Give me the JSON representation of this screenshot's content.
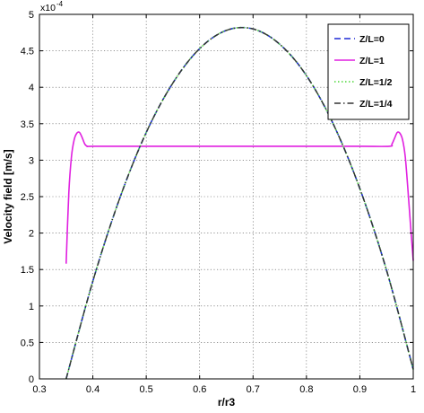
{
  "chart_data": {
    "type": "line",
    "title": "",
    "xlabel": "r/r3",
    "ylabel": "Velocity field [m/s]",
    "y_exponent_base": "x10",
    "y_exponent_power": "-4",
    "xlim": [
      0.3,
      1.0
    ],
    "ylim": [
      0,
      5
    ],
    "x_ticks": [
      0.3,
      0.4,
      0.5,
      0.6,
      0.7,
      0.8,
      0.9,
      1.0
    ],
    "x_tick_labels": [
      "0.3",
      "0.4",
      "0.5",
      "0.6",
      "0.7",
      "0.8",
      "0.9",
      "1"
    ],
    "y_ticks": [
      0,
      0.5,
      1,
      1.5,
      2,
      2.5,
      3,
      3.5,
      4,
      4.5,
      5
    ],
    "y_tick_labels": [
      "0",
      "0.5",
      "1",
      "1.5",
      "2",
      "2.5",
      "3",
      "3.5",
      "4",
      "4.5",
      "5"
    ],
    "grid": true,
    "legend_position": "top-right",
    "series": [
      {
        "name": "Z/L=0",
        "color": "#1f2ad6",
        "style": "dashed",
        "x": [
          0.35,
          0.4,
          0.45,
          0.5,
          0.55,
          0.6,
          0.65,
          0.7,
          0.75,
          0.8,
          0.85,
          0.9,
          0.95,
          1.0
        ],
        "y": [
          0.0,
          1.34,
          2.47,
          3.38,
          4.06,
          4.53,
          4.78,
          4.8,
          4.59,
          4.16,
          3.5,
          2.61,
          1.49,
          0.13
        ]
      },
      {
        "name": "Z/L=1",
        "color": "#e020e0",
        "style": "solid",
        "x": [
          0.35,
          0.355,
          0.36,
          0.365,
          0.37,
          0.375,
          0.38,
          0.385,
          0.39,
          0.4,
          0.5,
          0.6,
          0.7,
          0.8,
          0.9,
          0.955,
          0.96,
          0.965,
          0.97,
          0.975,
          0.98,
          0.985,
          0.99,
          0.995,
          1.0
        ],
        "y": [
          1.58,
          2.55,
          3.05,
          3.28,
          3.37,
          3.38,
          3.31,
          3.22,
          3.19,
          3.19,
          3.19,
          3.19,
          3.19,
          3.19,
          3.19,
          3.19,
          3.22,
          3.3,
          3.38,
          3.37,
          3.28,
          3.05,
          2.6,
          2.1,
          1.62
        ]
      },
      {
        "name": "Z/L=1/2",
        "color": "#66dd55",
        "style": "dotted",
        "x": [
          0.35,
          0.4,
          0.45,
          0.5,
          0.55,
          0.6,
          0.65,
          0.7,
          0.75,
          0.8,
          0.85,
          0.9,
          0.95,
          1.0
        ],
        "y": [
          0.0,
          1.34,
          2.47,
          3.38,
          4.06,
          4.53,
          4.78,
          4.8,
          4.59,
          4.16,
          3.5,
          2.61,
          1.49,
          0.13
        ]
      },
      {
        "name": "Z/L=1/4",
        "color": "#333333",
        "style": "dashdot",
        "x": [
          0.35,
          0.4,
          0.45,
          0.5,
          0.55,
          0.6,
          0.65,
          0.7,
          0.75,
          0.8,
          0.85,
          0.9,
          0.95,
          1.0
        ],
        "y": [
          0.0,
          1.34,
          2.47,
          3.38,
          4.06,
          4.53,
          4.78,
          4.8,
          4.59,
          4.16,
          3.5,
          2.61,
          1.49,
          0.13
        ]
      }
    ]
  }
}
